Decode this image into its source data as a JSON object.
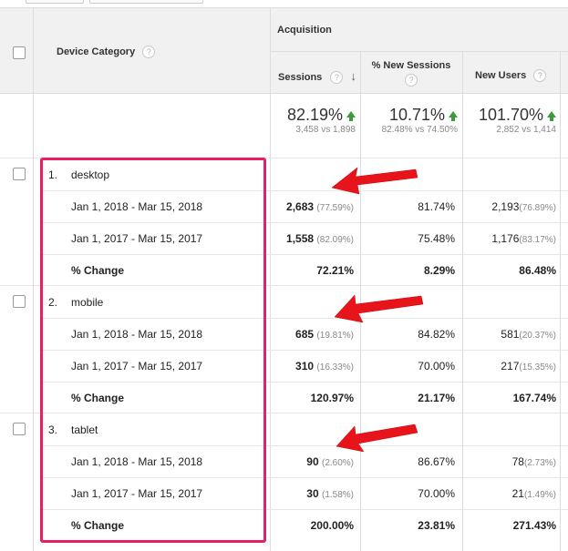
{
  "table": {
    "header": {
      "device_category": "Device Category",
      "acquisition": "Acquisition",
      "help_glyph": "?",
      "col_sessions": "Sessions",
      "col_new_sessions": "% New Sessions",
      "col_new_users": "New Users"
    },
    "totals": {
      "sessions": {
        "big": "82.19%",
        "small": "3,458 vs 1,898"
      },
      "new_sessions": {
        "big": "10.71%",
        "small": "82.48% vs 74.50%"
      },
      "new_users": {
        "big": "101.70%",
        "small": "2,852 vs 1,414"
      }
    },
    "groups": [
      {
        "num": "1.",
        "name": "desktop",
        "rows": [
          {
            "label": "Jan 1, 2018 - Mar 15, 2018",
            "sessions": "2,683",
            "sessions_pct": "(77.59%)",
            "new_sessions": "81.74%",
            "new_users": "2,193",
            "new_users_pct": "(76.89%)"
          },
          {
            "label": "Jan 1, 2017 - Mar 15, 2017",
            "sessions": "1,558",
            "sessions_pct": "(82.09%)",
            "new_sessions": "75.48%",
            "new_users": "1,176",
            "new_users_pct": "(83.17%)"
          }
        ],
        "change": {
          "label": "% Change",
          "sessions": "72.21%",
          "new_sessions": "8.29%",
          "new_users": "86.48%"
        }
      },
      {
        "num": "2.",
        "name": "mobile",
        "rows": [
          {
            "label": "Jan 1, 2018 - Mar 15, 2018",
            "sessions": "685",
            "sessions_pct": "(19.81%)",
            "new_sessions": "84.82%",
            "new_users": "581",
            "new_users_pct": "(20.37%)"
          },
          {
            "label": "Jan 1, 2017 - Mar 15, 2017",
            "sessions": "310",
            "sessions_pct": "(16.33%)",
            "new_sessions": "70.00%",
            "new_users": "217",
            "new_users_pct": "(15.35%)"
          }
        ],
        "change": {
          "label": "% Change",
          "sessions": "120.97%",
          "new_sessions": "21.17%",
          "new_users": "167.74%"
        }
      },
      {
        "num": "3.",
        "name": "tablet",
        "rows": [
          {
            "label": "Jan 1, 2018 - Mar 15, 2018",
            "sessions": "90",
            "sessions_pct": "(2.60%)",
            "new_sessions": "86.67%",
            "new_users": "78",
            "new_users_pct": "(2.73%)"
          },
          {
            "label": "Jan 1, 2017 - Mar 15, 2017",
            "sessions": "30",
            "sessions_pct": "(1.58%)",
            "new_sessions": "70.00%",
            "new_users": "21",
            "new_users_pct": "(1.49%)"
          }
        ],
        "change": {
          "label": "% Change",
          "sessions": "200.00%",
          "new_sessions": "23.81%",
          "new_users": "271.43%"
        }
      }
    ]
  },
  "colors": {
    "highlight_box": "#e91e63",
    "annotation_arrow": "#e8141c",
    "up_arrow": "#3a9d3a"
  }
}
